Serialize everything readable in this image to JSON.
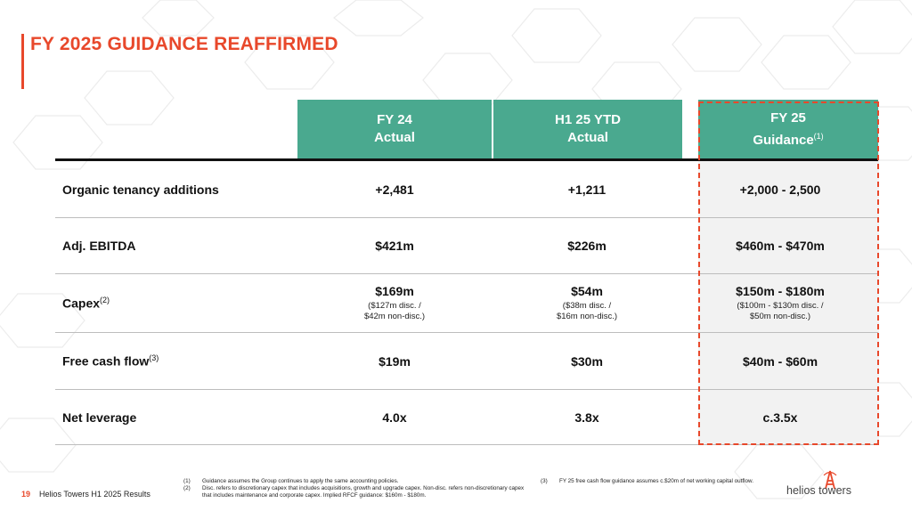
{
  "title": "FY 2025 GUIDANCE REAFFIRMED",
  "colors": {
    "accent": "#e8482b",
    "header_green": "#4aa98f",
    "guidance_bg": "#f2f2f2"
  },
  "table": {
    "headers": [
      {
        "line1": "FY 24",
        "line2": "Actual",
        "note": ""
      },
      {
        "line1": "H1 25 YTD",
        "line2": "Actual",
        "note": ""
      },
      {
        "line1": "FY 25",
        "line2": "Guidance",
        "note": "(1)"
      }
    ],
    "rows": [
      {
        "label": "Organic tenancy additions",
        "note": "",
        "values": [
          {
            "main": "+2,481",
            "sub1": "",
            "sub2": ""
          },
          {
            "main": "+1,211",
            "sub1": "",
            "sub2": ""
          },
          {
            "main": "+2,000 - 2,500",
            "sub1": "",
            "sub2": ""
          }
        ]
      },
      {
        "label": "Adj. EBITDA",
        "note": "",
        "values": [
          {
            "main": "$421m",
            "sub1": "",
            "sub2": ""
          },
          {
            "main": "$226m",
            "sub1": "",
            "sub2": ""
          },
          {
            "main": "$460m - $470m",
            "sub1": "",
            "sub2": ""
          }
        ]
      },
      {
        "label": "Capex",
        "note": "(2)",
        "values": [
          {
            "main": "$169m",
            "sub1": "($127m disc. /",
            "sub2": "$42m non-disc.)"
          },
          {
            "main": "$54m",
            "sub1": "($38m disc. /",
            "sub2": "$16m non-disc.)"
          },
          {
            "main": "$150m - $180m",
            "sub1": "($100m - $130m disc. /",
            "sub2": "$50m non-disc.)"
          }
        ]
      },
      {
        "label": "Free cash flow",
        "note": "(3)",
        "values": [
          {
            "main": "$19m",
            "sub1": "",
            "sub2": ""
          },
          {
            "main": "$30m",
            "sub1": "",
            "sub2": ""
          },
          {
            "main": "$40m - $60m",
            "sub1": "",
            "sub2": ""
          }
        ]
      },
      {
        "label": "Net leverage",
        "note": "",
        "values": [
          {
            "main": "4.0x",
            "sub1": "",
            "sub2": ""
          },
          {
            "main": "3.8x",
            "sub1": "",
            "sub2": ""
          },
          {
            "main": "c.3.5x",
            "sub1": "",
            "sub2": ""
          }
        ]
      }
    ]
  },
  "footnotes": [
    {
      "num": "(1)",
      "text": "Guidance assumes the Group continues to apply the same accounting policies."
    },
    {
      "num": "(2)",
      "text": "Disc. refers to discretionary capex that includes acquisitions, growth and upgrade capex. Non-disc. refers non-discretionary capex that includes maintenance and corporate capex. Implied RFCF guidance: $160m - $180m."
    },
    {
      "num": "(3)",
      "text": "FY 25 free cash flow guidance assumes c.$20m of net working capital outflow."
    }
  ],
  "footer": {
    "page_number": "19",
    "text": "Helios Towers H1 2025 Results"
  },
  "logo": {
    "word1": "helios",
    "word2": "towers",
    "icon": "tower-icon"
  }
}
